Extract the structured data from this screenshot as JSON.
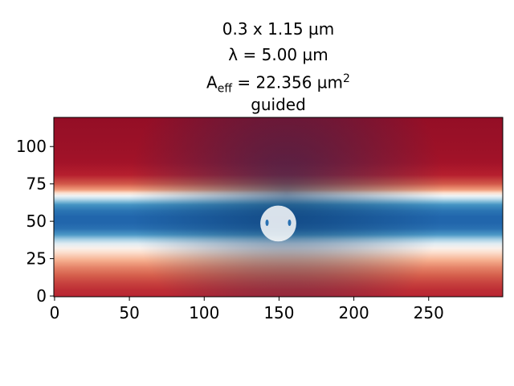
{
  "chart_data": {
    "type": "heatmap",
    "title_lines": [
      "0.3 x 1.15 µm",
      "λ = 5.00 µm",
      "guided"
    ],
    "title_aeff": {
      "prefix": "A",
      "subscript": "eff",
      "text": " = 22.356 µm",
      "superscript": "2"
    },
    "xlim": [
      -0.5,
      299.5
    ],
    "ylim": [
      119.5,
      -0.5
    ],
    "x_ticks": [
      0,
      50,
      100,
      150,
      200,
      250
    ],
    "y_ticks": [
      0,
      25,
      50,
      75,
      100
    ],
    "colormap": "RdBu",
    "colormap_colors": [
      "#67001f",
      "#b2182b",
      "#d6604d",
      "#f4a582",
      "#fddbc7",
      "#f7f7f7",
      "#d1e5f0",
      "#92c5de",
      "#4393c3",
      "#2166ac",
      "#053061"
    ],
    "field_profile": {
      "rows": [
        0,
        10,
        20,
        30,
        38,
        44,
        48,
        50,
        52,
        54,
        56,
        58,
        62,
        66,
        70,
        74,
        78,
        81,
        84,
        87,
        90,
        95,
        100,
        105,
        110,
        115,
        119
      ],
      "values": [
        -0.88,
        -0.87,
        -0.86,
        -0.84,
        -0.78,
        -0.62,
        -0.42,
        -0.18,
        0.05,
        0.25,
        0.45,
        0.6,
        0.74,
        0.8,
        0.8,
        0.75,
        0.58,
        0.35,
        0.12,
        -0.05,
        -0.18,
        -0.36,
        -0.5,
        -0.6,
        -0.68,
        -0.74,
        -0.76
      ]
    },
    "waveguide_core": {
      "x_center": 149.5,
      "width": 12,
      "y_top": 38,
      "y_bottom": 51
    }
  }
}
